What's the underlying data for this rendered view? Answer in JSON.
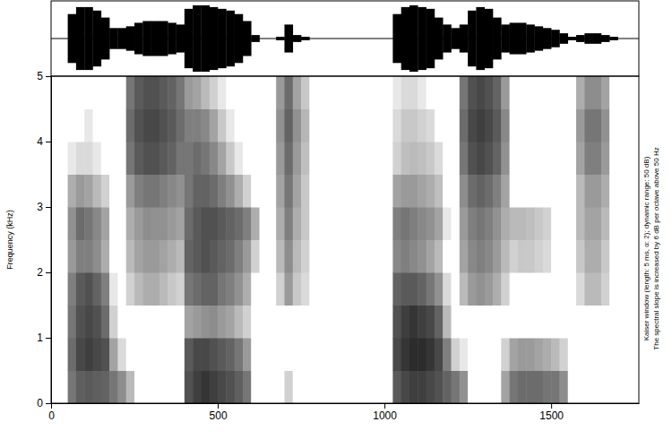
{
  "chart_data": {
    "type": "spectrogram",
    "y_label": "Frequency (kHz)",
    "annotations": [
      "Kaiser window (length: 5 ms, α: 2); dynamic range: 50 dB)",
      "The spectral slope is increased by 6 dB per octave above 50 Hz"
    ],
    "xlim": [
      0,
      1763
    ],
    "xticks": [
      0,
      500,
      1000,
      1500
    ],
    "ylim": [
      0,
      5
    ],
    "yticks": [
      0,
      1,
      2,
      3,
      4,
      5
    ],
    "zlim": [
      0,
      50
    ],
    "waveform_lim": [
      -1,
      1
    ],
    "x": [
      12.5,
      37.5,
      62.5,
      87.5,
      112.5,
      137.5,
      162.5,
      187.5,
      212.5,
      237.5,
      262.5,
      287.5,
      312.5,
      337.5,
      362.5,
      387.5,
      412.5,
      437.5,
      462.5,
      487.5,
      512.5,
      537.5,
      562.5,
      587.5,
      612.5,
      637.5,
      662.5,
      687.5,
      712.5,
      737.5,
      762.5,
      787.5,
      812.5,
      837.5,
      862.5,
      887.5,
      912.5,
      937.5,
      962.5,
      987.5,
      1012.5,
      1037.5,
      1062.5,
      1087.5,
      1112.5,
      1137.5,
      1162.5,
      1187.5,
      1212.5,
      1237.5,
      1262.5,
      1287.5,
      1312.5,
      1337.5,
      1362.5,
      1387.5,
      1412.5,
      1437.5,
      1462.5,
      1487.5,
      1512.5,
      1537.5,
      1562.5,
      1587.5,
      1612.5,
      1637.5,
      1662.5,
      1687.5,
      1712.5,
      1737.5,
      1762.5
    ],
    "y": [
      0.25,
      0.75,
      1.25,
      1.75,
      2.25,
      2.75,
      3.25,
      3.75,
      4.25,
      4.75
    ],
    "z": [
      [
        0,
        0,
        0,
        0,
        0,
        0,
        0,
        0,
        0,
        0
      ],
      [
        0,
        0,
        0,
        0,
        0,
        0,
        0,
        0,
        0,
        0
      ],
      [
        30,
        32,
        30,
        28,
        22,
        24,
        18,
        5,
        0,
        0
      ],
      [
        35,
        40,
        38,
        36,
        28,
        32,
        22,
        8,
        0,
        0
      ],
      [
        36,
        42,
        40,
        38,
        28,
        30,
        20,
        8,
        5,
        0
      ],
      [
        35,
        40,
        38,
        34,
        25,
        26,
        15,
        5,
        0,
        0
      ],
      [
        34,
        38,
        32,
        28,
        18,
        20,
        10,
        0,
        0,
        0
      ],
      [
        30,
        20,
        10,
        5,
        0,
        0,
        0,
        0,
        0,
        0
      ],
      [
        25,
        8,
        0,
        0,
        0,
        0,
        0,
        0,
        0,
        0
      ],
      [
        15,
        0,
        0,
        10,
        15,
        18,
        22,
        30,
        32,
        30
      ],
      [
        0,
        0,
        0,
        15,
        20,
        22,
        28,
        36,
        38,
        36
      ],
      [
        0,
        0,
        0,
        18,
        22,
        25,
        30,
        38,
        40,
        38
      ],
      [
        0,
        0,
        0,
        18,
        22,
        24,
        30,
        38,
        40,
        38
      ],
      [
        0,
        0,
        0,
        15,
        20,
        24,
        28,
        36,
        38,
        36
      ],
      [
        0,
        0,
        0,
        12,
        18,
        22,
        26,
        34,
        36,
        34
      ],
      [
        0,
        0,
        0,
        10,
        15,
        20,
        24,
        30,
        32,
        30
      ],
      [
        38,
        36,
        20,
        30,
        34,
        32,
        30,
        30,
        28,
        22
      ],
      [
        42,
        40,
        22,
        32,
        36,
        36,
        34,
        32,
        28,
        20
      ],
      [
        44,
        40,
        24,
        34,
        38,
        38,
        34,
        30,
        26,
        15
      ],
      [
        42,
        38,
        25,
        34,
        36,
        38,
        32,
        26,
        20,
        10
      ],
      [
        40,
        36,
        22,
        30,
        34,
        36,
        28,
        20,
        12,
        5
      ],
      [
        38,
        34,
        20,
        28,
        32,
        34,
        24,
        12,
        5,
        0
      ],
      [
        35,
        30,
        15,
        24,
        28,
        32,
        18,
        5,
        0,
        0
      ],
      [
        30,
        22,
        10,
        18,
        22,
        28,
        10,
        0,
        0,
        0
      ],
      [
        0,
        0,
        0,
        0,
        10,
        18,
        0,
        0,
        0,
        0
      ],
      [
        0,
        0,
        0,
        0,
        0,
        0,
        0,
        0,
        0,
        0
      ],
      [
        0,
        0,
        0,
        0,
        0,
        0,
        0,
        0,
        0,
        0
      ],
      [
        0,
        0,
        0,
        10,
        15,
        18,
        20,
        22,
        24,
        22
      ],
      [
        10,
        0,
        0,
        22,
        25,
        28,
        30,
        32,
        34,
        32
      ],
      [
        0,
        0,
        0,
        12,
        15,
        18,
        20,
        22,
        24,
        20
      ],
      [
        0,
        0,
        0,
        8,
        10,
        12,
        12,
        14,
        16,
        12
      ],
      [
        0,
        0,
        0,
        0,
        0,
        0,
        0,
        0,
        0,
        0
      ],
      [
        0,
        0,
        0,
        0,
        0,
        0,
        0,
        0,
        0,
        0
      ],
      [
        0,
        0,
        0,
        0,
        0,
        0,
        0,
        0,
        0,
        0
      ],
      [
        0,
        0,
        0,
        0,
        0,
        0,
        0,
        0,
        0,
        0
      ],
      [
        0,
        0,
        0,
        0,
        0,
        0,
        0,
        0,
        0,
        0
      ],
      [
        0,
        0,
        0,
        0,
        0,
        0,
        0,
        0,
        0,
        0
      ],
      [
        0,
        0,
        0,
        0,
        0,
        0,
        0,
        0,
        0,
        0
      ],
      [
        0,
        0,
        0,
        0,
        0,
        0,
        0,
        0,
        0,
        0
      ],
      [
        0,
        0,
        0,
        0,
        0,
        0,
        0,
        0,
        0,
        0
      ],
      [
        0,
        0,
        0,
        0,
        0,
        0,
        0,
        0,
        0,
        0
      ],
      [
        36,
        40,
        38,
        34,
        26,
        28,
        20,
        10,
        8,
        5
      ],
      [
        40,
        44,
        42,
        36,
        28,
        30,
        22,
        14,
        12,
        8
      ],
      [
        42,
        46,
        44,
        36,
        26,
        28,
        22,
        15,
        12,
        8
      ],
      [
        42,
        46,
        42,
        34,
        24,
        26,
        20,
        14,
        10,
        5
      ],
      [
        40,
        44,
        40,
        30,
        20,
        24,
        18,
        12,
        8,
        0
      ],
      [
        38,
        40,
        34,
        24,
        15,
        20,
        14,
        8,
        0,
        0
      ],
      [
        34,
        28,
        15,
        8,
        0,
        5,
        0,
        0,
        0,
        0
      ],
      [
        30,
        10,
        0,
        0,
        0,
        0,
        0,
        0,
        0,
        0
      ],
      [
        24,
        5,
        0,
        15,
        20,
        22,
        25,
        30,
        32,
        30
      ],
      [
        0,
        0,
        0,
        22,
        26,
        28,
        32,
        38,
        40,
        38
      ],
      [
        0,
        0,
        0,
        24,
        28,
        30,
        34,
        40,
        42,
        40
      ],
      [
        0,
        0,
        0,
        22,
        26,
        28,
        32,
        38,
        40,
        38
      ],
      [
        0,
        0,
        0,
        18,
        22,
        24,
        28,
        34,
        36,
        34
      ],
      [
        20,
        10,
        0,
        10,
        15,
        18,
        20,
        24,
        26,
        22
      ],
      [
        30,
        20,
        0,
        0,
        10,
        15,
        0,
        0,
        0,
        0
      ],
      [
        32,
        22,
        0,
        0,
        12,
        15,
        0,
        0,
        0,
        0
      ],
      [
        32,
        22,
        0,
        0,
        12,
        14,
        0,
        0,
        0,
        0
      ],
      [
        32,
        20,
        0,
        0,
        10,
        12,
        0,
        0,
        0,
        0
      ],
      [
        30,
        18,
        0,
        0,
        8,
        10,
        0,
        0,
        0,
        0
      ],
      [
        30,
        15,
        0,
        0,
        0,
        0,
        0,
        0,
        0,
        0
      ],
      [
        25,
        10,
        0,
        0,
        0,
        0,
        0,
        0,
        0,
        0
      ],
      [
        0,
        0,
        0,
        0,
        0,
        0,
        0,
        0,
        0,
        0
      ],
      [
        0,
        0,
        0,
        8,
        12,
        15,
        15,
        20,
        22,
        18
      ],
      [
        0,
        0,
        0,
        15,
        18,
        20,
        22,
        28,
        30,
        25
      ],
      [
        0,
        0,
        0,
        15,
        18,
        20,
        22,
        28,
        30,
        25
      ],
      [
        0,
        0,
        0,
        10,
        12,
        15,
        18,
        22,
        24,
        20
      ],
      [
        0,
        0,
        0,
        0,
        0,
        0,
        0,
        0,
        0,
        0
      ],
      [
        0,
        0,
        0,
        0,
        0,
        0,
        0,
        0,
        0,
        0
      ],
      [
        0,
        0,
        0,
        0,
        0,
        0,
        0,
        0,
        0,
        0
      ],
      [
        0,
        0,
        0,
        0,
        0,
        0,
        0,
        0,
        0,
        0
      ]
    ],
    "waveform": [
      0,
      0,
      0.7,
      0.9,
      0.9,
      0.8,
      0.6,
      0.3,
      0.3,
      0.35,
      0.45,
      0.5,
      0.5,
      0.5,
      0.45,
      0.4,
      0.85,
      0.95,
      0.95,
      0.9,
      0.85,
      0.8,
      0.7,
      0.5,
      0.1,
      0,
      0,
      0.05,
      0.4,
      0.1,
      0.05,
      0,
      0,
      0,
      0,
      0,
      0,
      0,
      0,
      0,
      0,
      0.7,
      0.9,
      0.95,
      0.9,
      0.85,
      0.6,
      0.4,
      0.3,
      0.4,
      0.8,
      0.9,
      0.85,
      0.6,
      0.4,
      0.45,
      0.45,
      0.4,
      0.35,
      0.3,
      0.25,
      0.15,
      0.05,
      0.1,
      0.15,
      0.15,
      0.1,
      0.05,
      0,
      0,
      0
    ]
  }
}
